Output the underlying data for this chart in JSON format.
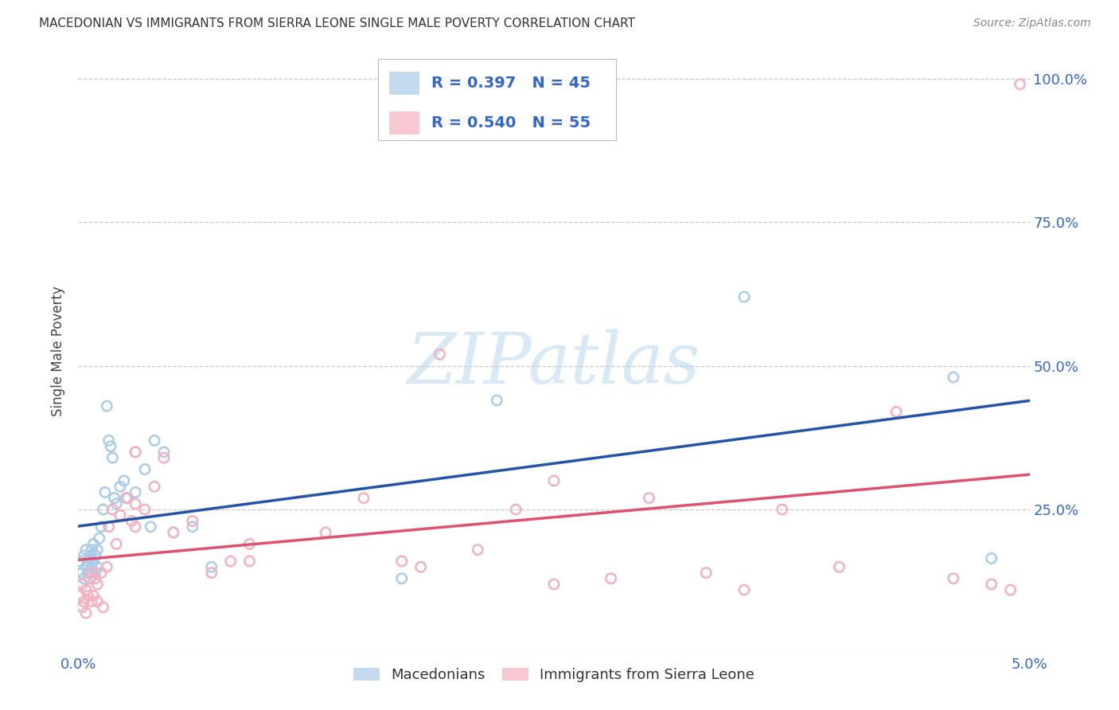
{
  "title": "MACEDONIAN VS IMMIGRANTS FROM SIERRA LEONE SINGLE MALE POVERTY CORRELATION CHART",
  "source": "Source: ZipAtlas.com",
  "ylabel": "Single Male Poverty",
  "xlim": [
    0.0,
    0.05
  ],
  "ylim": [
    0.0,
    1.05
  ],
  "xticks": [
    0.0,
    0.01,
    0.02,
    0.03,
    0.04,
    0.05
  ],
  "xticklabels": [
    "0.0%",
    "",
    "",
    "",
    "",
    "5.0%"
  ],
  "yticks": [
    0.0,
    0.25,
    0.5,
    0.75,
    1.0
  ],
  "yticklabels_right": [
    "",
    "25.0%",
    "50.0%",
    "75.0%",
    "100.0%"
  ],
  "background_color": "#ffffff",
  "grid_color": "#c8c8c8",
  "macedonian_color": "#aacce8",
  "sierra_leone_color": "#f4b0c0",
  "macedonian_line_color": "#2255aa",
  "sierra_leone_line_color": "#e05070",
  "title_color": "#333333",
  "axis_color": "#3366cc",
  "watermark_text": "ZIPatlas",
  "marker_size": 80,
  "legend_R_mac": "R = 0.397",
  "legend_N_mac": "N = 45",
  "legend_R_sle": "R = 0.540",
  "legend_N_sle": "N = 55",
  "mac_x": [
    0.0001,
    0.0002,
    0.0003,
    0.0003,
    0.0004,
    0.0004,
    0.0005,
    0.0005,
    0.0006,
    0.0006,
    0.0007,
    0.0007,
    0.0008,
    0.0008,
    0.0009,
    0.0009,
    0.001,
    0.001,
    0.0011,
    0.0012,
    0.0013,
    0.0014,
    0.0015,
    0.0016,
    0.0017,
    0.0018,
    0.0019,
    0.002,
    0.0022,
    0.0024,
    0.0026,
    0.003,
    0.003,
    0.0035,
    0.0038,
    0.004,
    0.0045,
    0.005,
    0.006,
    0.007,
    0.017,
    0.022,
    0.035,
    0.046,
    0.048
  ],
  "mac_y": [
    0.16,
    0.14,
    0.17,
    0.13,
    0.15,
    0.18,
    0.16,
    0.14,
    0.17,
    0.13,
    0.18,
    0.15,
    0.19,
    0.16,
    0.14,
    0.17,
    0.15,
    0.18,
    0.2,
    0.22,
    0.25,
    0.28,
    0.43,
    0.37,
    0.36,
    0.34,
    0.27,
    0.26,
    0.29,
    0.3,
    0.27,
    0.35,
    0.28,
    0.32,
    0.22,
    0.37,
    0.35,
    0.21,
    0.22,
    0.15,
    0.13,
    0.44,
    0.62,
    0.48,
    0.165
  ],
  "sle_x": [
    0.0001,
    0.0002,
    0.0002,
    0.0003,
    0.0004,
    0.0004,
    0.0005,
    0.0006,
    0.0007,
    0.0007,
    0.0008,
    0.0009,
    0.001,
    0.001,
    0.0012,
    0.0013,
    0.0015,
    0.0016,
    0.0018,
    0.002,
    0.0022,
    0.0025,
    0.0028,
    0.003,
    0.003,
    0.0035,
    0.004,
    0.0045,
    0.005,
    0.006,
    0.007,
    0.008,
    0.009,
    0.013,
    0.015,
    0.017,
    0.019,
    0.021,
    0.023,
    0.025,
    0.028,
    0.03,
    0.033,
    0.037,
    0.04,
    0.043,
    0.046,
    0.048,
    0.049,
    0.0495,
    0.003,
    0.009,
    0.018,
    0.025,
    0.035
  ],
  "sle_y": [
    0.1,
    0.08,
    0.12,
    0.09,
    0.07,
    0.11,
    0.1,
    0.13,
    0.09,
    0.14,
    0.1,
    0.13,
    0.09,
    0.12,
    0.14,
    0.08,
    0.15,
    0.22,
    0.25,
    0.19,
    0.24,
    0.27,
    0.23,
    0.22,
    0.26,
    0.25,
    0.29,
    0.34,
    0.21,
    0.23,
    0.14,
    0.16,
    0.19,
    0.21,
    0.27,
    0.16,
    0.52,
    0.18,
    0.25,
    0.3,
    0.13,
    0.27,
    0.14,
    0.25,
    0.15,
    0.42,
    0.13,
    0.12,
    0.11,
    0.99,
    0.35,
    0.16,
    0.15,
    0.12,
    0.11
  ]
}
